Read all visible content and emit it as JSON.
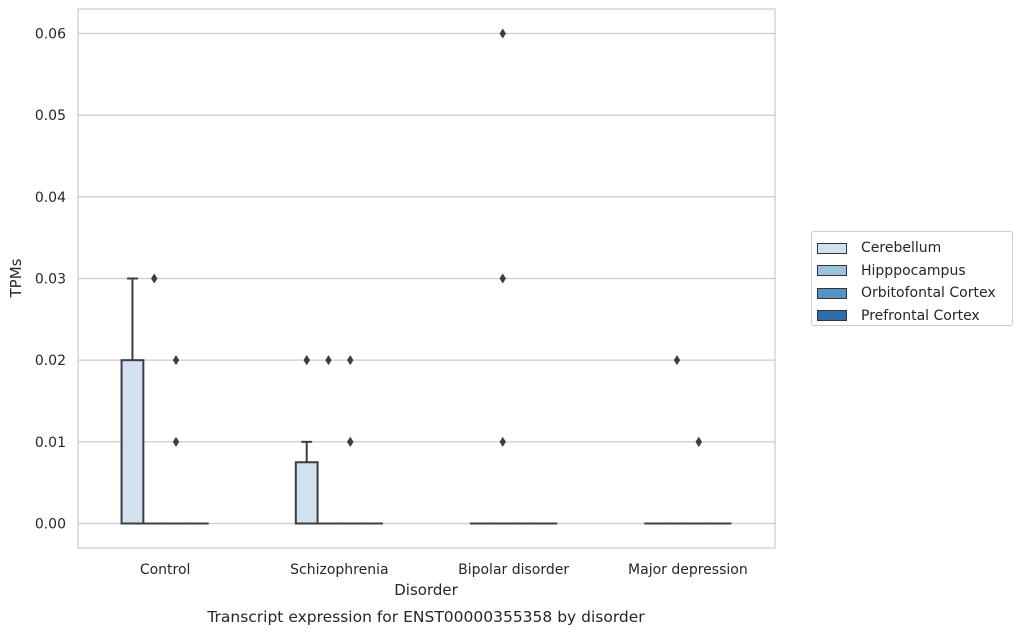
{
  "chart_data": {
    "type": "box",
    "xlabel": "Disorder",
    "ylabel": "TPMs",
    "caption": "Transcript expression for ENST00000355358 by disorder",
    "categories": [
      "Control",
      "Schizophrenia",
      "Bipolar disorder",
      "Major depression"
    ],
    "ylim": [
      -0.003,
      0.063
    ],
    "yticks": [
      0.0,
      0.01,
      0.02,
      0.03,
      0.04,
      0.05,
      0.06
    ],
    "ytick_labels": [
      "0.00",
      "0.01",
      "0.02",
      "0.03",
      "0.04",
      "0.05",
      "0.06"
    ],
    "grid": "horizontal",
    "legend_position": "right",
    "series": [
      {
        "name": "Cerebellum",
        "color": "#d1e1f0",
        "boxes": [
          {
            "q1": 0,
            "median": 0,
            "q3": 0.02,
            "whisker_low": 0,
            "whisker_high": 0.03,
            "outliers": []
          },
          {
            "q1": 0,
            "median": 0,
            "q3": 0.0075,
            "whisker_low": 0,
            "whisker_high": 0.01,
            "outliers": [
              0.02,
              0.02
            ]
          },
          {
            "q1": 0,
            "median": 0,
            "q3": 0,
            "whisker_low": 0,
            "whisker_high": 0,
            "outliers": []
          },
          {
            "q1": 0,
            "median": 0,
            "q3": 0,
            "whisker_low": 0,
            "whisker_high": 0,
            "outliers": []
          }
        ]
      },
      {
        "name": "Hipppocampus",
        "color": "#9ac2db",
        "boxes": [
          {
            "q1": 0,
            "median": 0,
            "q3": 0,
            "whisker_low": 0,
            "whisker_high": 0,
            "outliers": [
              0.03
            ]
          },
          {
            "q1": 0,
            "median": 0,
            "q3": 0,
            "whisker_low": 0,
            "whisker_high": 0,
            "outliers": [
              0.02
            ]
          },
          {
            "q1": 0,
            "median": 0,
            "q3": 0,
            "whisker_low": 0,
            "whisker_high": 0,
            "outliers": [
              0.06,
              0.03,
              0.01
            ]
          },
          {
            "q1": 0,
            "median": 0,
            "q3": 0,
            "whisker_low": 0,
            "whisker_high": 0,
            "outliers": [
              0.02
            ]
          }
        ]
      },
      {
        "name": "Orbitofontal Cortex",
        "color": "#5394c4",
        "boxes": [
          {
            "q1": 0,
            "median": 0,
            "q3": 0,
            "whisker_low": 0,
            "whisker_high": 0,
            "outliers": [
              0.02,
              0.01
            ]
          },
          {
            "q1": 0,
            "median": 0,
            "q3": 0,
            "whisker_low": 0,
            "whisker_high": 0,
            "outliers": [
              0.02,
              0.01,
              0.01
            ]
          },
          {
            "q1": 0,
            "median": 0,
            "q3": 0,
            "whisker_low": 0,
            "whisker_high": 0,
            "outliers": []
          },
          {
            "q1": 0,
            "median": 0,
            "q3": 0,
            "whisker_low": 0,
            "whisker_high": 0,
            "outliers": [
              0.01,
              0.01
            ]
          }
        ]
      },
      {
        "name": "Prefrontal Cortex",
        "color": "#2e6fa9",
        "boxes": [
          {
            "q1": 0,
            "median": 0,
            "q3": 0,
            "whisker_low": 0,
            "whisker_high": 0,
            "outliers": []
          },
          {
            "q1": 0,
            "median": 0,
            "q3": 0,
            "whisker_low": 0,
            "whisker_high": 0,
            "outliers": []
          },
          {
            "q1": 0,
            "median": 0,
            "q3": 0,
            "whisker_low": 0,
            "whisker_high": 0,
            "outliers": []
          },
          {
            "q1": 0,
            "median": 0,
            "q3": 0,
            "whisker_low": 0,
            "whisker_high": 0,
            "outliers": []
          }
        ]
      }
    ]
  }
}
